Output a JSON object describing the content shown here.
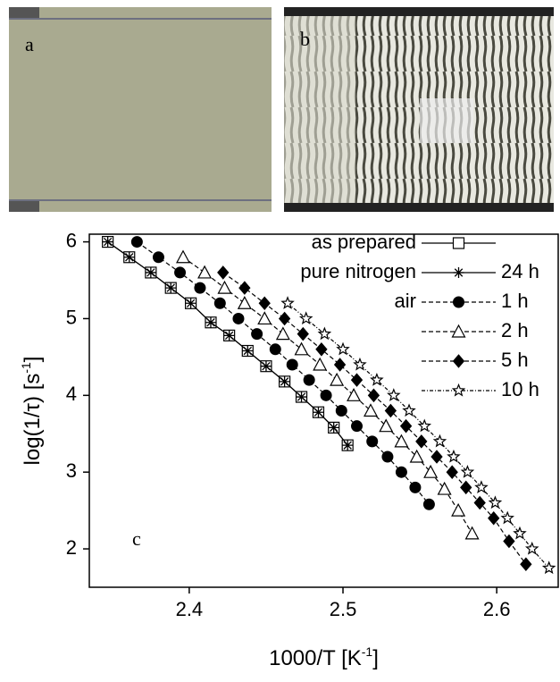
{
  "images": [
    {
      "label": "a"
    },
    {
      "label": "b"
    }
  ],
  "chart_data": {
    "type": "scatter",
    "annotation": "c",
    "x_label": {
      "text": "1000/T [K",
      "sup": "-1",
      "after": "]"
    },
    "y_label": {
      "text": "log(1/τ) [s",
      "sup": "-1",
      "after": "]"
    },
    "xlim": [
      2.335,
      2.64
    ],
    "ylim": [
      1.5,
      6.1
    ],
    "xticks": [
      2.4,
      2.5,
      2.6
    ],
    "yticks": [
      2,
      3,
      4,
      5,
      6
    ],
    "series": [
      {
        "group": "as prepared",
        "marker": "square",
        "dash": "solid",
        "color": "#000",
        "x": [
          2.347,
          2.361,
          2.375,
          2.388,
          2.401,
          2.414,
          2.426,
          2.438,
          2.45,
          2.462,
          2.473,
          2.484,
          2.494,
          2.503
        ],
        "values": [
          6.0,
          5.8,
          5.6,
          5.4,
          5.2,
          4.95,
          4.78,
          4.58,
          4.38,
          4.18,
          3.98,
          3.78,
          3.58,
          3.35
        ]
      },
      {
        "group": "pure nitrogen",
        "name": "24 h",
        "marker": "asterisk",
        "dash": "solid",
        "color": "#000",
        "x": [
          2.347,
          2.361,
          2.375,
          2.388,
          2.401,
          2.414,
          2.426,
          2.438,
          2.45,
          2.462,
          2.473,
          2.484,
          2.494,
          2.503
        ],
        "values": [
          6.0,
          5.8,
          5.6,
          5.4,
          5.2,
          4.95,
          4.78,
          4.58,
          4.38,
          4.18,
          3.98,
          3.78,
          3.58,
          3.35
        ]
      },
      {
        "group": "air",
        "name": "1 h",
        "marker": "circle",
        "dash": "dashed",
        "color": "#000",
        "x": [
          2.366,
          2.38,
          2.394,
          2.407,
          2.42,
          2.432,
          2.444,
          2.456,
          2.467,
          2.478,
          2.489,
          2.499,
          2.509,
          2.519,
          2.529,
          2.538,
          2.547,
          2.556
        ],
        "values": [
          6.0,
          5.8,
          5.6,
          5.4,
          5.2,
          5.0,
          4.8,
          4.6,
          4.4,
          4.2,
          4.0,
          3.8,
          3.6,
          3.4,
          3.2,
          3.0,
          2.8,
          2.58
        ]
      },
      {
        "name": "2 h",
        "marker": "triangle",
        "dash": "dashed",
        "color": "#000",
        "x": [
          2.396,
          2.41,
          2.423,
          2.436,
          2.449,
          2.461,
          2.473,
          2.485,
          2.496,
          2.507,
          2.518,
          2.528,
          2.538,
          2.548,
          2.557,
          2.566,
          2.575,
          2.584
        ],
        "values": [
          5.8,
          5.6,
          5.4,
          5.2,
          5.0,
          4.8,
          4.6,
          4.4,
          4.2,
          4.0,
          3.8,
          3.6,
          3.4,
          3.2,
          3.0,
          2.78,
          2.5,
          2.2
        ]
      },
      {
        "name": "5 h",
        "marker": "diamond",
        "dash": "dashed",
        "color": "#000",
        "x": [
          2.422,
          2.436,
          2.449,
          2.462,
          2.474,
          2.486,
          2.498,
          2.509,
          2.52,
          2.531,
          2.541,
          2.551,
          2.561,
          2.571,
          2.58,
          2.589,
          2.598,
          2.608,
          2.619
        ],
        "values": [
          5.6,
          5.4,
          5.2,
          5.0,
          4.8,
          4.6,
          4.4,
          4.2,
          4.0,
          3.8,
          3.6,
          3.4,
          3.2,
          3.0,
          2.8,
          2.6,
          2.4,
          2.1,
          1.8
        ]
      },
      {
        "name": "10 h",
        "marker": "star",
        "dash": "dashdot",
        "color": "#000",
        "x": [
          2.464,
          2.476,
          2.488,
          2.5,
          2.511,
          2.522,
          2.533,
          2.543,
          2.553,
          2.563,
          2.572,
          2.581,
          2.59,
          2.599,
          2.607,
          2.615,
          2.623,
          2.634
        ],
        "values": [
          5.2,
          5.0,
          4.8,
          4.6,
          4.4,
          4.2,
          4.0,
          3.8,
          3.6,
          3.4,
          3.2,
          3.0,
          2.8,
          2.6,
          2.4,
          2.2,
          2.0,
          1.75
        ]
      }
    ]
  }
}
